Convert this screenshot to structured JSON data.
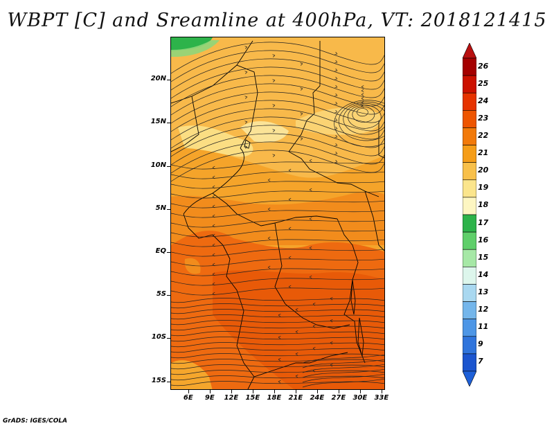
{
  "title": "WBPT [C] and Sreamline at 400hPa, VT: 2018121415",
  "credit": "GrADS: IGES/COLA",
  "map": {
    "lat_range": [
      -16,
      25
    ],
    "lon_range": [
      3.5,
      33.5
    ],
    "lat_ticks": [
      {
        "label": "20N",
        "value": 20
      },
      {
        "label": "15N",
        "value": 15
      },
      {
        "label": "10N",
        "value": 10
      },
      {
        "label": "5N",
        "value": 5
      },
      {
        "label": "EQ",
        "value": 0
      },
      {
        "label": "5S",
        "value": -5
      },
      {
        "label": "10S",
        "value": -10
      },
      {
        "label": "15S",
        "value": -15
      }
    ],
    "lon_ticks": [
      {
        "label": "6E",
        "value": 6
      },
      {
        "label": "9E",
        "value": 9
      },
      {
        "label": "12E",
        "value": 12
      },
      {
        "label": "15E",
        "value": 15
      },
      {
        "label": "18E",
        "value": 18
      },
      {
        "label": "21E",
        "value": 21
      },
      {
        "label": "24E",
        "value": 24
      },
      {
        "label": "27E",
        "value": 27
      },
      {
        "label": "30E",
        "value": 30
      },
      {
        "label": "33E",
        "value": 33
      }
    ]
  },
  "colorbar": {
    "labels": [
      "26",
      "25",
      "24",
      "23",
      "22",
      "21",
      "20",
      "19",
      "18",
      "17",
      "16",
      "15",
      "14",
      "13",
      "12",
      "11",
      "9",
      "7"
    ],
    "colors": [
      "#a50000",
      "#cc1100",
      "#e63300",
      "#ee5500",
      "#f27a0a",
      "#f59d18",
      "#f8c04a",
      "#fbe58c",
      "#fdf6c2",
      "#2db34a",
      "#5fcf6a",
      "#a6e8a6",
      "#ddf6ec",
      "#a9d8f0",
      "#74b6eb",
      "#4d96e6",
      "#2f74dc",
      "#1b55cf"
    ],
    "top_arrow_color": "#b81010",
    "bottom_arrow_color": "#1e60d8"
  }
}
